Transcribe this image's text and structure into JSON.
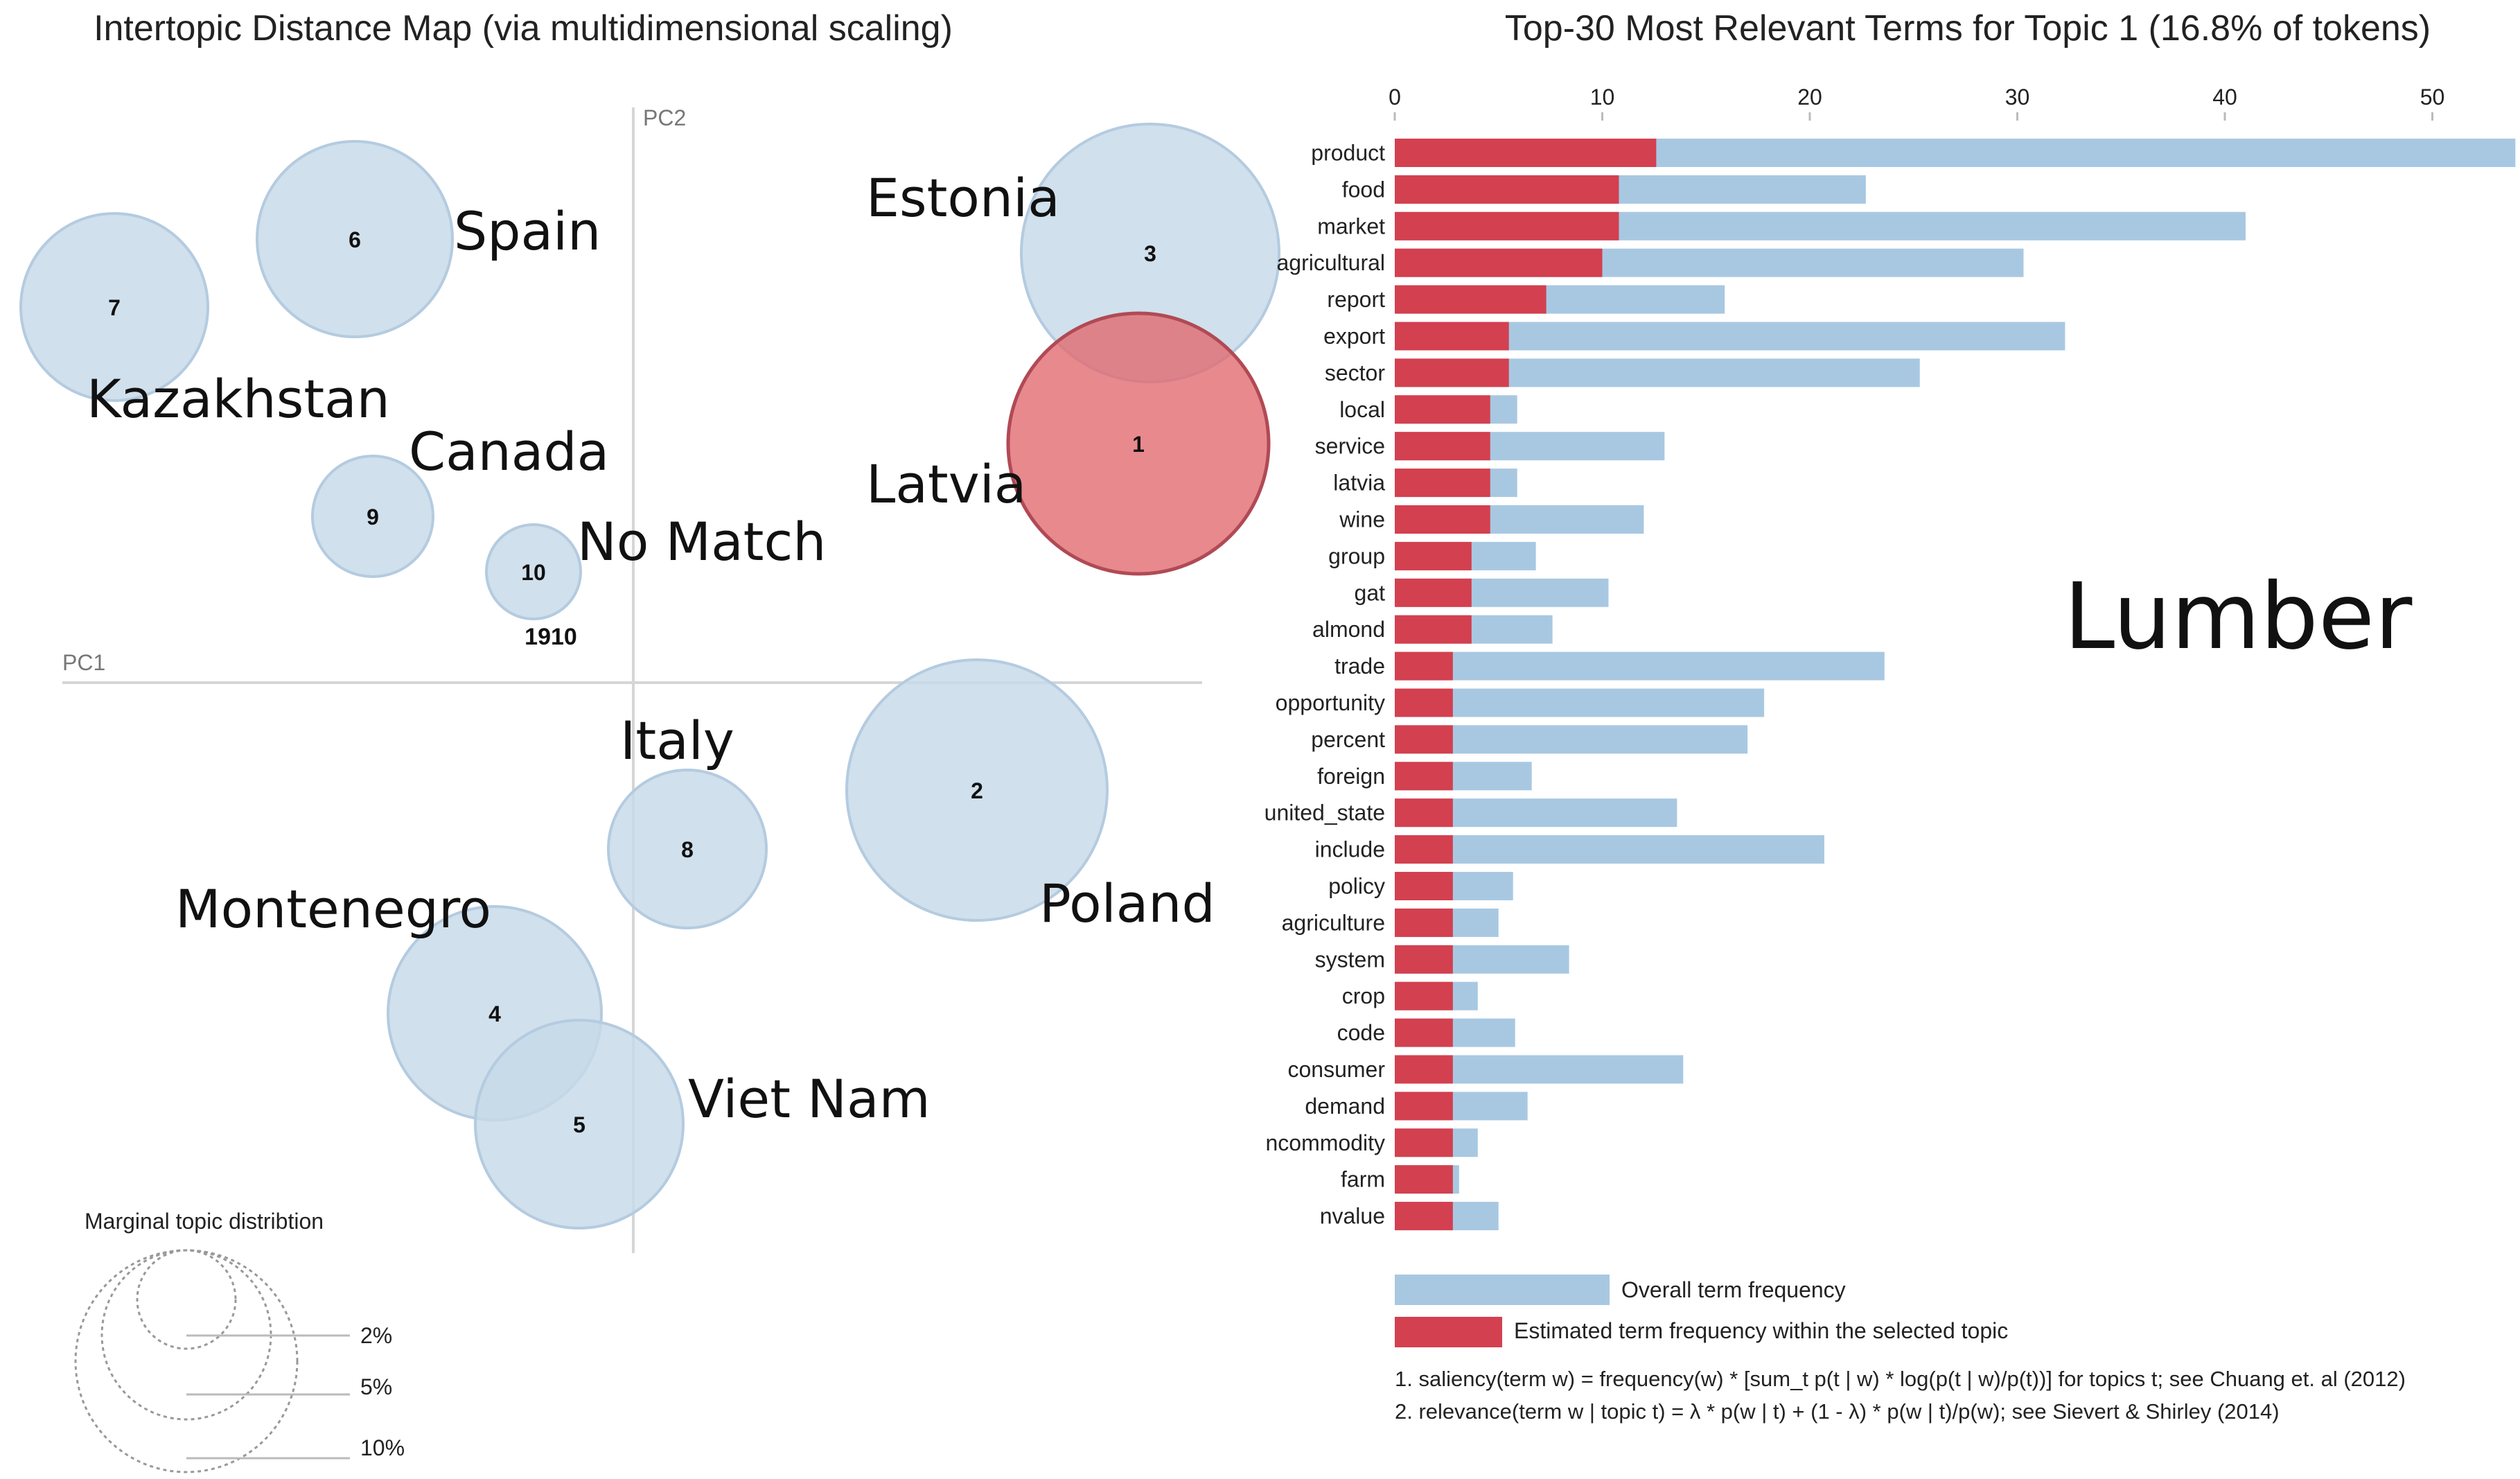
{
  "colors": {
    "bubble_fill": "#c6d9e8",
    "bubble_stroke": "#b4cbe0",
    "selected_fill": "#e2686e",
    "selected_stroke": "#b04a55",
    "overall_bar": "#a8c8e2",
    "topic_bar": "#d3404f",
    "axis_line": "#d6d6d6",
    "text": "#222222",
    "muted": "#777777"
  },
  "map": {
    "title": "Intertopic Distance Map (via multidimensional scaling)",
    "pc1_label": "PC1",
    "pc2_label": "PC2",
    "bubbles": [
      {
        "id": "7",
        "label": "7"
      },
      {
        "id": "6",
        "label": "6"
      },
      {
        "id": "3",
        "label": "3"
      },
      {
        "id": "1",
        "label": "1",
        "selected": true
      },
      {
        "id": "9",
        "label": "9"
      },
      {
        "id": "10",
        "label": "10"
      },
      {
        "id": "cluster",
        "label": "1910"
      },
      {
        "id": "2",
        "label": "2"
      },
      {
        "id": "8",
        "label": "8"
      },
      {
        "id": "4",
        "label": "4"
      },
      {
        "id": "5",
        "label": "5"
      }
    ],
    "country_labels": {
      "spain": "Spain",
      "kazakhstan": "Kazakhstan",
      "estonia": "Estonia",
      "canada": "Canada",
      "latvia": "Latvia",
      "no_match": "No Match",
      "italy": "Italy",
      "poland": "Poland",
      "montenegro": "Montenegro",
      "viet_nam": "Viet Nam"
    },
    "legend": {
      "title": "Marginal topic distribtion",
      "levels": [
        "2%",
        "5%",
        "10%"
      ]
    }
  },
  "chart_data": {
    "type": "bar",
    "orientation": "horizontal",
    "title": "Top-30 Most Relevant Terms for Topic 1 (16.8% of tokens)",
    "xlim": [
      0,
      54
    ],
    "ticks": [
      0,
      10,
      20,
      30,
      40,
      50
    ],
    "categories": [
      "product",
      "food",
      "market",
      "agricultural",
      "report",
      "export",
      "sector",
      "local",
      "service",
      "latvia",
      "wine",
      "group",
      "gat",
      "almond",
      "trade",
      "opportunity",
      "percent",
      "foreign",
      "united_state",
      "include",
      "policy",
      "agriculture",
      "system",
      "crop",
      "code",
      "consumer",
      "demand",
      "ncommodity",
      "farm",
      "nvalue"
    ],
    "series": [
      {
        "name": "Overall term frequency",
        "values": [
          54,
          22.7,
          41,
          30.3,
          15.9,
          32.3,
          25.3,
          5.9,
          13,
          5.9,
          12,
          6.8,
          10.3,
          7.6,
          23.6,
          17.8,
          17,
          6.6,
          13.6,
          20.7,
          5.7,
          5,
          8.4,
          4,
          5.8,
          13.9,
          6.4,
          4,
          3.1,
          5
        ]
      },
      {
        "name": "Estimated term frequency within the selected topic",
        "values": [
          12.6,
          10.8,
          10.8,
          10,
          7.3,
          5.5,
          5.5,
          4.6,
          4.6,
          4.6,
          4.6,
          3.7,
          3.7,
          3.7,
          2.8,
          2.8,
          2.8,
          2.8,
          2.8,
          2.8,
          2.8,
          2.8,
          2.8,
          2.8,
          2.8,
          2.8,
          2.8,
          2.8,
          2.8,
          2.8
        ]
      }
    ],
    "annotation": "Lumber",
    "legend": {
      "overall": "Overall term frequency",
      "estimated": "Estimated term frequency within the selected topic"
    },
    "footnotes": [
      "1. saliency(term w) = frequency(w) * [sum_t p(t | w) * log(p(t | w)/p(t))] for topics t; see Chuang et. al (2012)",
      "2. relevance(term w | topic t) = λ * p(w | t) + (1 - λ) * p(w | t)/p(w); see Sievert & Shirley (2014)"
    ]
  }
}
